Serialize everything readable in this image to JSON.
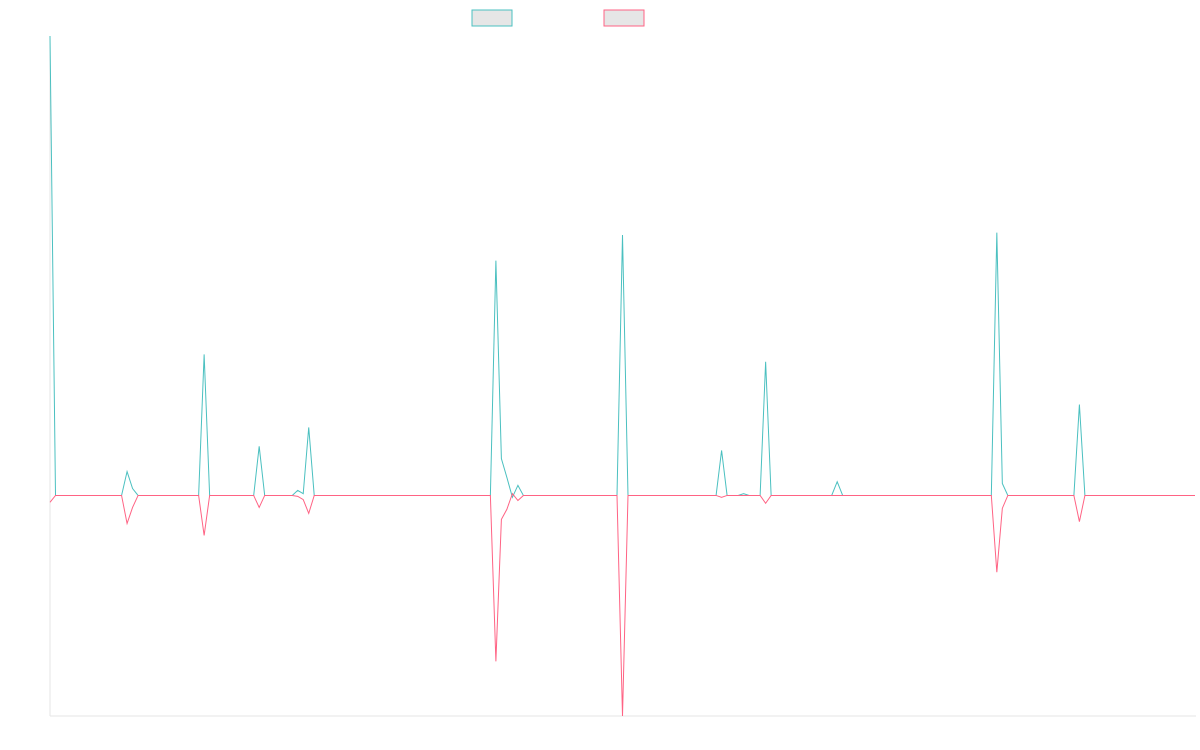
{
  "chart_data": {
    "type": "line",
    "ylim": [
      -48,
      100
    ],
    "legend": "top",
    "series": [
      {
        "color": "#4bc0c0",
        "values": [
          100,
          0,
          0,
          0,
          0,
          0,
          0,
          0,
          0,
          0,
          0,
          0,
          0,
          0,
          5.2,
          1.5,
          0,
          0,
          0,
          0,
          0,
          0,
          0,
          0,
          0,
          0,
          0,
          0,
          30.7,
          0,
          0,
          0,
          0,
          0,
          0,
          0,
          0,
          0,
          10.7,
          0,
          0,
          0,
          0,
          0,
          0,
          1.1,
          0.4,
          14.8,
          0,
          0,
          0,
          0,
          0,
          0,
          0,
          0,
          0,
          0,
          0,
          0,
          0,
          0,
          0,
          0,
          0,
          0,
          0,
          0,
          0,
          0,
          0,
          0,
          0,
          0,
          0,
          0,
          0,
          0,
          0,
          0,
          0,
          51.1,
          8,
          3.9,
          -0.4,
          2.2,
          0,
          0,
          0,
          0,
          0,
          0,
          0,
          0,
          0,
          0,
          0,
          0,
          0,
          0,
          0,
          0,
          0,
          0,
          56.7,
          0,
          0,
          0,
          0,
          0,
          0,
          0,
          0,
          0,
          0,
          0,
          0,
          0,
          0,
          0,
          0,
          0,
          9.8,
          0,
          0,
          0,
          0.4,
          0,
          0,
          0,
          29.1,
          0,
          0,
          0,
          0,
          0,
          0,
          0,
          0,
          0,
          0,
          0,
          0,
          3,
          0,
          0,
          0,
          0,
          0,
          0,
          0,
          0,
          0,
          0,
          0,
          0,
          0,
          0,
          0,
          0,
          0,
          0,
          0,
          0,
          0,
          0,
          0,
          0,
          0,
          0,
          0,
          0,
          57.2,
          2.6,
          0,
          0,
          0,
          0,
          0,
          0,
          0,
          0,
          0,
          0,
          0,
          0,
          0,
          19.8,
          0,
          0,
          0,
          0,
          0,
          0,
          0,
          0,
          0,
          0,
          0,
          0,
          0,
          0,
          0,
          0,
          0,
          0,
          0,
          0,
          0
        ]
      },
      {
        "color": "#ff6384",
        "values": [
          -1.5,
          0,
          0,
          0,
          0,
          0,
          0,
          0,
          0,
          0,
          0,
          0,
          0,
          0,
          -6.1,
          -2.6,
          0,
          0,
          0,
          0,
          0,
          0,
          0,
          0,
          0,
          0,
          0,
          0,
          -8.7,
          0,
          0,
          0,
          0,
          0,
          0,
          0,
          0,
          0,
          -2.6,
          0,
          0,
          0,
          0,
          0,
          0,
          -0.2,
          -0.9,
          -3.9,
          0,
          0,
          0,
          0,
          0,
          0,
          0,
          0,
          0,
          0,
          0,
          0,
          0,
          0,
          0,
          0,
          0,
          0,
          0,
          0,
          0,
          0,
          0,
          0,
          0,
          0,
          0,
          0,
          0,
          0,
          0,
          0,
          0,
          -36.1,
          -5.2,
          -3,
          0.4,
          -1.1,
          0,
          0,
          0,
          0,
          0,
          0,
          0,
          0,
          0,
          0,
          0,
          0,
          0,
          0,
          0,
          0,
          0,
          0,
          -48,
          0,
          0,
          0,
          0,
          0,
          0,
          0,
          0,
          0,
          0,
          0,
          0,
          0,
          0,
          0,
          0,
          0,
          -0.4,
          0,
          0,
          0,
          0,
          0,
          0,
          0,
          -1.7,
          0,
          0,
          0,
          0,
          0,
          0,
          0,
          0,
          0,
          0,
          0,
          0,
          0,
          0,
          0,
          0,
          0,
          0,
          0,
          0,
          0,
          0,
          0,
          0,
          0,
          0,
          0,
          0,
          0,
          0,
          0,
          0,
          0,
          0,
          0,
          0,
          0,
          0,
          0,
          0,
          0,
          -16.7,
          -2.8,
          0,
          0,
          0,
          0,
          0,
          0,
          0,
          0,
          0,
          0,
          0,
          0,
          0,
          -5.7,
          0,
          0,
          0,
          0,
          0,
          0,
          0,
          0,
          0,
          0,
          0,
          0,
          0,
          0,
          0,
          0,
          0,
          0,
          0,
          0,
          0
        ]
      }
    ]
  }
}
